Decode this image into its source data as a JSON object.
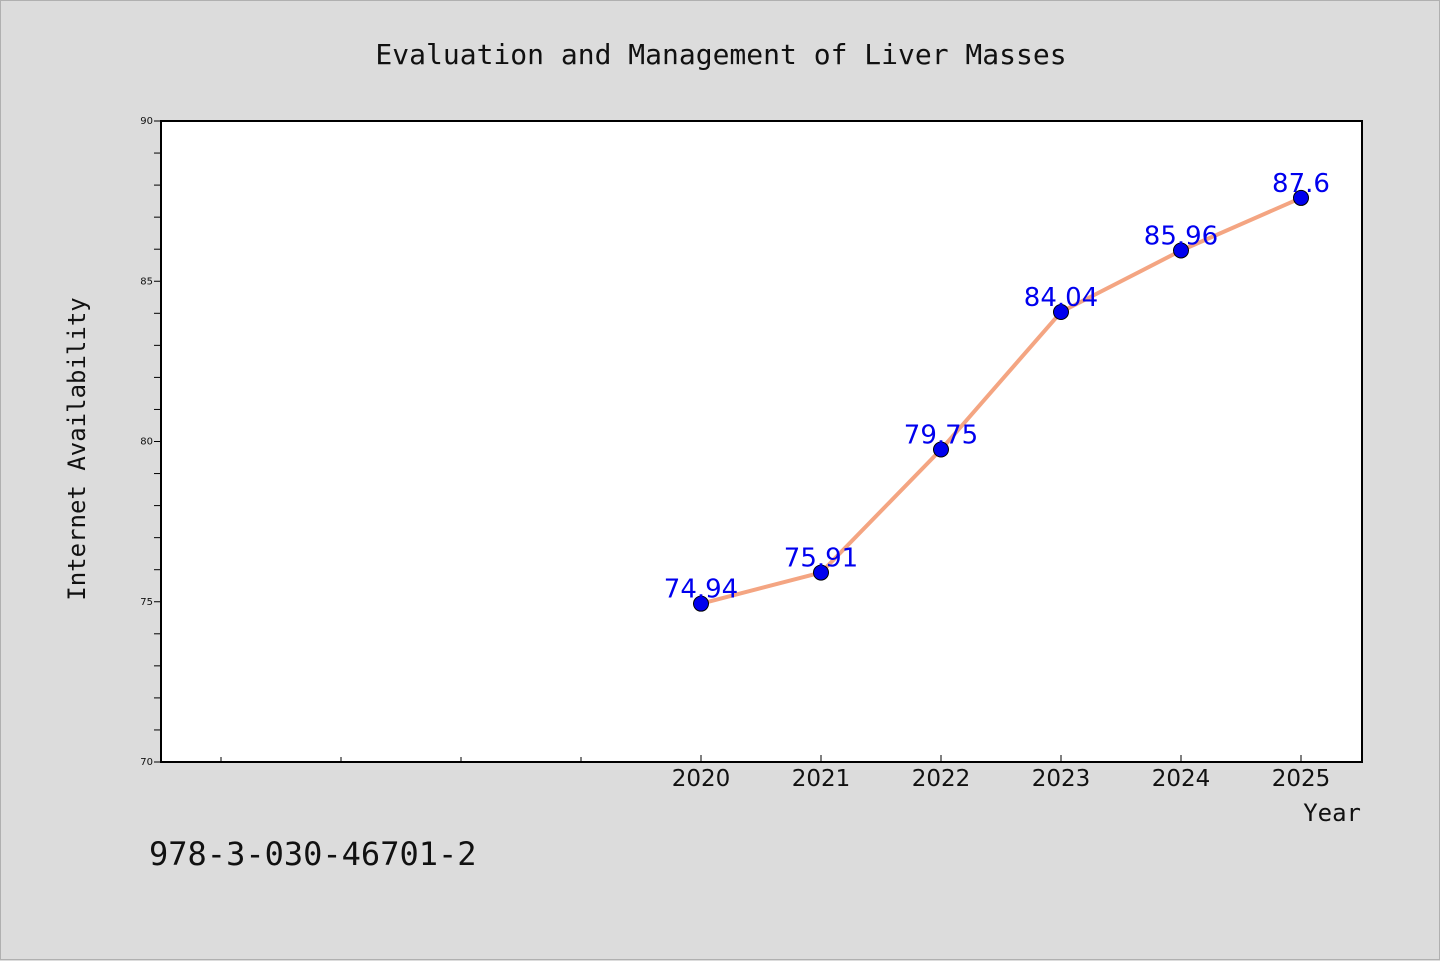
{
  "chart_data": {
    "type": "line",
    "title": "Evaluation and Management of Liver Masses",
    "xlabel": "Year",
    "ylabel": "Internet Availability",
    "x": [
      "2020",
      "2021",
      "2022",
      "2023",
      "2024",
      "2025"
    ],
    "series": [
      {
        "values": [
          74.94,
          75.91,
          79.75,
          84.04,
          85.96,
          87.6
        ],
        "labels": [
          "74.94",
          "75.91",
          "79.75",
          "84.04",
          "85.96",
          "87.6"
        ],
        "line_color": "#f4a582",
        "marker_color": "#0000ee"
      }
    ],
    "ylim": [
      70,
      90
    ],
    "yticks": [
      "70",
      "75",
      "80",
      "85",
      "90"
    ],
    "grid": false
  },
  "annotation": "978-3-030-46701-2",
  "colors": {
    "background": "#dcdcdc",
    "plot_background": "#ffffff",
    "line": "#f4a582",
    "marker": "#0000ee",
    "data_label": "#0000ee"
  }
}
